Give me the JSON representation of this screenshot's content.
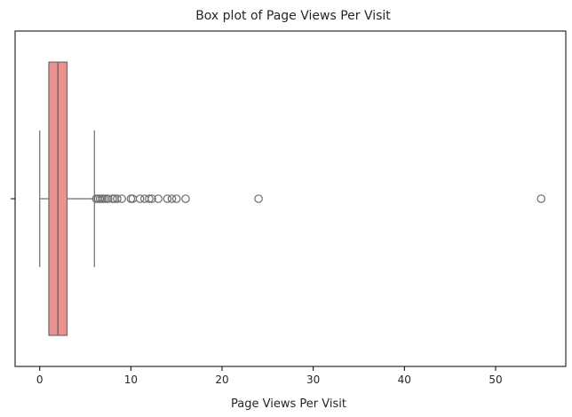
{
  "chart_data": {
    "type": "box",
    "title": "Box plot of Page Views Per Visit",
    "xlabel": "Page Views Per Visit",
    "ylabel": "",
    "orientation": "horizontal",
    "xlim": [
      -2.7,
      57.7
    ],
    "xticks": [
      0,
      10,
      20,
      30,
      40,
      50
    ],
    "xtick_labels": [
      "0",
      "10",
      "20",
      "30",
      "40",
      "50"
    ],
    "grid": false,
    "box_color": "#e99292",
    "line_color": "#6c6c6c",
    "series": [
      {
        "whisker_low": 0,
        "q1": 1,
        "median": 2,
        "q3": 3,
        "whisker_high": 6,
        "outliers": [
          6.2,
          6.4,
          6.6,
          6.8,
          7,
          7.2,
          7.5,
          8,
          8.2,
          8.5,
          9,
          10,
          10.2,
          11,
          11.5,
          12,
          12.3,
          13,
          14,
          14.5,
          15,
          16,
          24,
          55
        ]
      }
    ]
  }
}
